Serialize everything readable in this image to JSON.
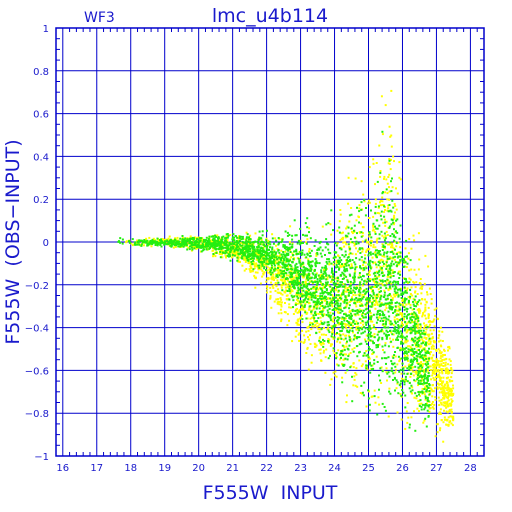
{
  "chart_data": {
    "type": "scatter",
    "title": "lmc_u4b114",
    "corner_label": "WF3",
    "xlabel": "F555W  INPUT",
    "ylabel": "F555W  (OBS−INPUT)",
    "xlim": [
      15.8,
      28.4
    ],
    "ylim": [
      -1.0,
      1.0
    ],
    "x_ticks": [
      "16",
      "17",
      "18",
      "19",
      "20",
      "21",
      "22",
      "23",
      "24",
      "25",
      "26",
      "27",
      "28"
    ],
    "y_ticks": [
      "−1",
      "−0.8",
      "−0.6",
      "−0.4",
      "−0.2",
      "0",
      "0.2",
      "0.4",
      "0.6",
      "0.8",
      "1"
    ],
    "grid": true,
    "colors": {
      "frame": "#0000cc",
      "text": "#1a1acc",
      "green": "#22ee11",
      "yellow": "#ffff00"
    },
    "series": [
      {
        "color": "yellow",
        "marker": "square",
        "envelope": [
          {
            "x": 17.8,
            "lo": -0.02,
            "hi": 0.02
          },
          {
            "x": 19,
            "lo": -0.03,
            "hi": 0.03
          },
          {
            "x": 20,
            "lo": -0.06,
            "hi": 0.05
          },
          {
            "x": 21,
            "lo": -0.12,
            "hi": 0.06
          },
          {
            "x": 22,
            "lo": -0.3,
            "hi": 0.08
          },
          {
            "x": 23,
            "lo": -0.6,
            "hi": 0.1
          },
          {
            "x": 24,
            "lo": -0.85,
            "hi": 0.2
          },
          {
            "x": 25,
            "lo": -1.0,
            "hi": 0.6
          },
          {
            "x": 25.6,
            "lo": -1.0,
            "hi": 0.9
          },
          {
            "x": 26,
            "lo": -1.0,
            "hi": 0.3
          },
          {
            "x": 26.8,
            "lo": -1.0,
            "hi": 0.0
          },
          {
            "x": 27.5,
            "lo": -1.0,
            "hi": -0.5
          }
        ]
      },
      {
        "color": "green",
        "marker": "square",
        "envelope": [
          {
            "x": 17.6,
            "lo": -0.02,
            "hi": 0.03
          },
          {
            "x": 19,
            "lo": -0.03,
            "hi": 0.02
          },
          {
            "x": 20,
            "lo": -0.05,
            "hi": 0.04
          },
          {
            "x": 21,
            "lo": -0.1,
            "hi": 0.06
          },
          {
            "x": 22,
            "lo": -0.18,
            "hi": 0.08
          },
          {
            "x": 23,
            "lo": -0.4,
            "hi": 0.12
          },
          {
            "x": 24,
            "lo": -0.7,
            "hi": 0.22
          },
          {
            "x": 25,
            "lo": -0.95,
            "hi": 0.4
          },
          {
            "x": 25.6,
            "lo": -1.0,
            "hi": 0.6
          },
          {
            "x": 26,
            "lo": -1.0,
            "hi": 0.3
          },
          {
            "x": 26.8,
            "lo": -1.0,
            "hi": -0.35
          }
        ]
      }
    ]
  }
}
